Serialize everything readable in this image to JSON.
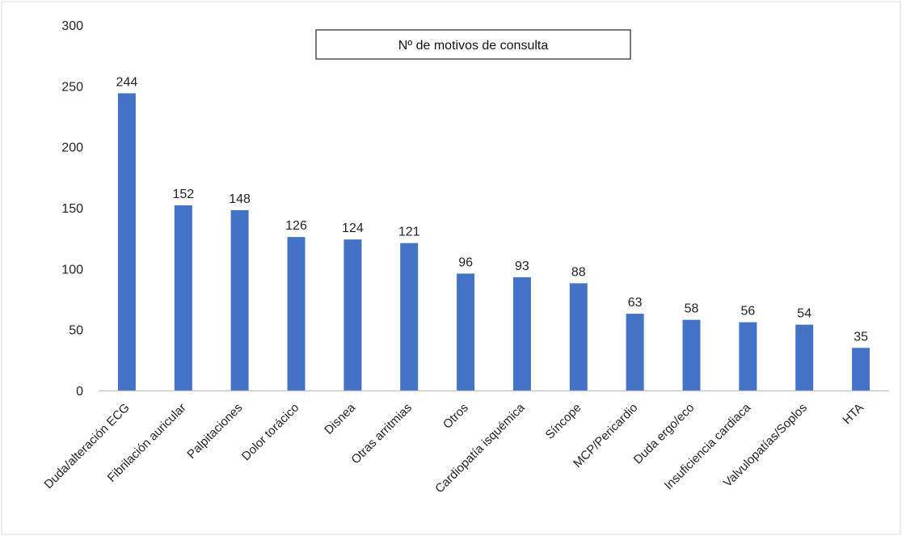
{
  "chart_data": {
    "type": "bar",
    "legend": "Nº de motivos de consulta",
    "legend_position": "top-center",
    "categories": [
      "Duda/alteración ECG",
      "Fibrilación auricular",
      "Palpitaciones",
      "Dolor torácico",
      "Disnea",
      "Otras arritmias",
      "Otros",
      "Cardiopatía isquémica",
      "Síncope",
      "MCP/Pericardio",
      "Duda ergo/eco",
      "Insuficiencia cardiaca",
      "Valvulopatías/Soplos",
      "HTA"
    ],
    "series": [
      {
        "name": "Nº de motivos de consulta",
        "values": [
          244,
          152,
          148,
          126,
          124,
          121,
          96,
          93,
          88,
          63,
          58,
          56,
          54,
          35
        ]
      }
    ],
    "ylim": [
      0,
      300
    ],
    "yticks": [
      0,
      50,
      100,
      150,
      200,
      250,
      300
    ],
    "grid": false,
    "data_labels": true,
    "colors": {
      "bar": "#4472C4",
      "axis": "#BFBFBF",
      "text": "#222222"
    }
  }
}
